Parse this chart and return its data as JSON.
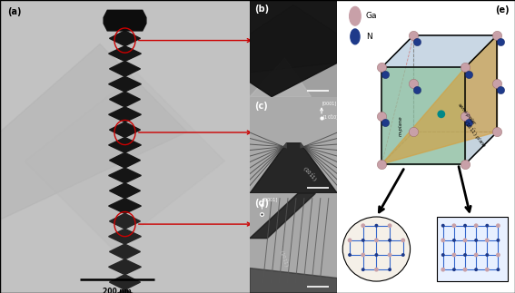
{
  "fig_width": 5.67,
  "fig_height": 3.23,
  "dpi": 100,
  "bg_color": "#ffffff",
  "panel_labels": [
    "(a)",
    "(b)",
    "(c)",
    "(d)",
    "(e)"
  ],
  "panel_label_fontsize": 7,
  "arrow_color": "#cc0000",
  "scale_bar_text": "200 nm",
  "ga_color": "#c8a0a8",
  "n_color": "#1e3a8a",
  "ga_color_bright": "#d4a0a0",
  "n_color_bright": "#2244aa",
  "m_plane_color": "#70b870",
  "semi_polar_color": "#d4a040",
  "unit_cell_face_color": "#a8bcd0",
  "wire_bg": "#c0c0c0",
  "wire_dark": "#181818",
  "panels_bcd_bg": "#787878"
}
